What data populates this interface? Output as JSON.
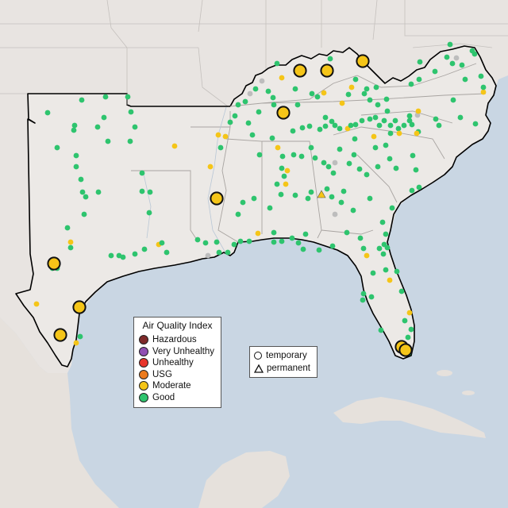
{
  "legend": {
    "title": "Air Quality Index",
    "categories": [
      {
        "name": "hazardous",
        "label": "Hazardous",
        "color": "#7e2a2a"
      },
      {
        "name": "very-unhealthy",
        "label": "Very Unhealthy",
        "color": "#8f4fb3"
      },
      {
        "name": "unhealthy",
        "label": "Unhealthy",
        "color": "#e8352b"
      },
      {
        "name": "usg",
        "label": "USG",
        "color": "#ec7a1c"
      },
      {
        "name": "moderate",
        "label": "Moderate",
        "color": "#f5c518"
      },
      {
        "name": "good",
        "label": "Good",
        "color": "#2ec46e"
      }
    ]
  },
  "monitor_types": {
    "temporary": "temporary",
    "permanent": "permanent"
  },
  "colors": {
    "water": "#c9d6e3",
    "land": "#e8e4e1",
    "region_land": "#ece9e6",
    "region_border": "#000000",
    "grey_monitor": "#bdbdbd"
  }
}
